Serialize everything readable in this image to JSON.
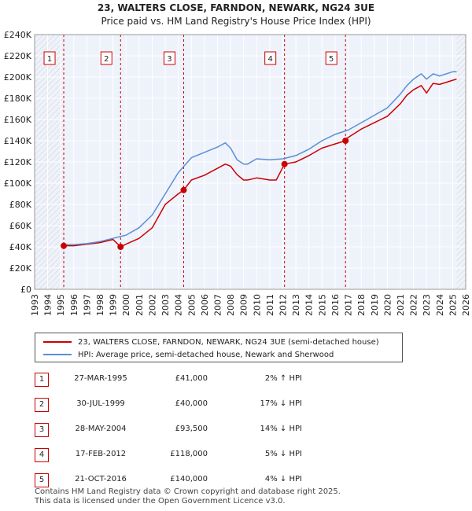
{
  "chart_data": {
    "type": "line",
    "title": "23, WALTERS CLOSE, FARNDON, NEWARK, NG24 3UE",
    "subtitle": "Price paid vs. HM Land Registry's House Price Index (HPI)",
    "xlim": [
      1993,
      2026
    ],
    "ylim": [
      0,
      240000
    ],
    "x_ticks": [
      "1993",
      "1994",
      "1995",
      "1996",
      "1997",
      "1998",
      "1999",
      "2000",
      "2001",
      "2002",
      "2003",
      "2004",
      "2005",
      "2006",
      "2007",
      "2008",
      "2009",
      "2010",
      "2011",
      "2012",
      "2013",
      "2014",
      "2015",
      "2016",
      "2017",
      "2018",
      "2019",
      "2020",
      "2021",
      "2022",
      "2023",
      "2024",
      "2025",
      "2026"
    ],
    "y_ticks": [
      {
        "value": 0,
        "label": "£0"
      },
      {
        "value": 20000,
        "label": "£20K"
      },
      {
        "value": 40000,
        "label": "£40K"
      },
      {
        "value": 60000,
        "label": "£60K"
      },
      {
        "value": 80000,
        "label": "£80K"
      },
      {
        "value": 100000,
        "label": "£100K"
      },
      {
        "value": 120000,
        "label": "£120K"
      },
      {
        "value": 140000,
        "label": "£140K"
      },
      {
        "value": 160000,
        "label": "£160K"
      },
      {
        "value": 180000,
        "label": "£180K"
      },
      {
        "value": 200000,
        "label": "£200K"
      },
      {
        "value": 220000,
        "label": "£220K"
      },
      {
        "value": 240000,
        "label": "£240K"
      }
    ],
    "series": [
      {
        "name": "23, WALTERS CLOSE, FARNDON, NEWARK, NG24 3UE (semi-detached house)",
        "color": "#cc0000",
        "x": [
          1995.23,
          1996,
          1997,
          1998,
          1999,
          1999.58,
          2000,
          2001,
          2002,
          2003,
          2004,
          2004.41,
          2005,
          2006,
          2007,
          2007.6,
          2008,
          2008.5,
          2009,
          2009.3,
          2010,
          2011,
          2011.5,
          2012.13,
          2013,
          2014,
          2015,
          2016,
          2016.8,
          2017,
          2018,
          2019,
          2020,
          2021,
          2021.5,
          2022,
          2022.6,
          2023,
          2023.5,
          2024,
          2025,
          2025.3
        ],
        "y": [
          41000,
          41000,
          42500,
          44000,
          47000,
          40000,
          42500,
          48000,
          58000,
          80000,
          90000,
          93500,
          103000,
          107500,
          114000,
          118000,
          116000,
          108000,
          103000,
          103000,
          105000,
          103000,
          103000,
          118000,
          120000,
          126000,
          133000,
          137000,
          140000,
          143000,
          151000,
          157000,
          163000,
          175000,
          183000,
          188000,
          192000,
          185000,
          194000,
          193000,
          197000,
          198000
        ]
      },
      {
        "name": "HPI: Average price, semi-detached house, Newark and Sherwood",
        "color": "#5b8fd6",
        "x": [
          1995,
          1996,
          1997,
          1998,
          1999,
          2000,
          2001,
          2002,
          2003,
          2004,
          2005,
          2006,
          2007,
          2007.6,
          2008,
          2008.5,
          2009,
          2009.3,
          2010,
          2011,
          2012,
          2013,
          2014,
          2015,
          2016,
          2017,
          2018,
          2019,
          2020,
          2021,
          2021.5,
          2022,
          2022.6,
          2023,
          2023.5,
          2024,
          2025,
          2025.3
        ],
        "y": [
          42000,
          42000,
          43000,
          45000,
          48000,
          51000,
          58000,
          70000,
          90000,
          110000,
          124000,
          129000,
          134000,
          138000,
          133000,
          122000,
          118000,
          118000,
          123000,
          122000,
          123000,
          126000,
          132000,
          140000,
          146000,
          150000,
          157000,
          164000,
          171000,
          184000,
          192000,
          198000,
          203000,
          198000,
          203000,
          201000,
          205000,
          205000
        ]
      }
    ],
    "transactions": [
      {
        "num": "1",
        "x": 1995.23,
        "y": 41000,
        "date": "27-MAR-1995",
        "price": "£41,000",
        "hpi": "2% ↑ HPI"
      },
      {
        "num": "2",
        "x": 1999.58,
        "y": 40000,
        "date": "30-JUL-1999",
        "price": "£40,000",
        "hpi": "17% ↓ HPI"
      },
      {
        "num": "3",
        "x": 2004.41,
        "y": 93500,
        "date": "28-MAY-2004",
        "price": "£93,500",
        "hpi": "14% ↓ HPI"
      },
      {
        "num": "4",
        "x": 2012.13,
        "y": 118000,
        "date": "17-FEB-2012",
        "price": "£118,000",
        "hpi": "5% ↓ HPI"
      },
      {
        "num": "5",
        "x": 2016.8,
        "y": 140000,
        "date": "21-OCT-2016",
        "price": "£140,000",
        "hpi": "4% ↓ HPI"
      }
    ],
    "shaded_ranges": [
      [
        1993,
        1995.23
      ],
      [
        2025.3,
        2026
      ]
    ]
  },
  "legend": {
    "red_label": "23, WALTERS CLOSE, FARNDON, NEWARK, NG24 3UE (semi-detached house)",
    "blue_label": "HPI: Average price, semi-detached house, Newark and Sherwood"
  },
  "footer": {
    "line1": "Contains HM Land Registry data © Crown copyright and database right 2025.",
    "line2": "This data is licensed under the Open Government Licence v3.0."
  },
  "colors": {
    "red": "#cc0000",
    "blue": "#5b8fd6",
    "plot_bg": "#eef2fb",
    "hatch": "#cccccc"
  }
}
